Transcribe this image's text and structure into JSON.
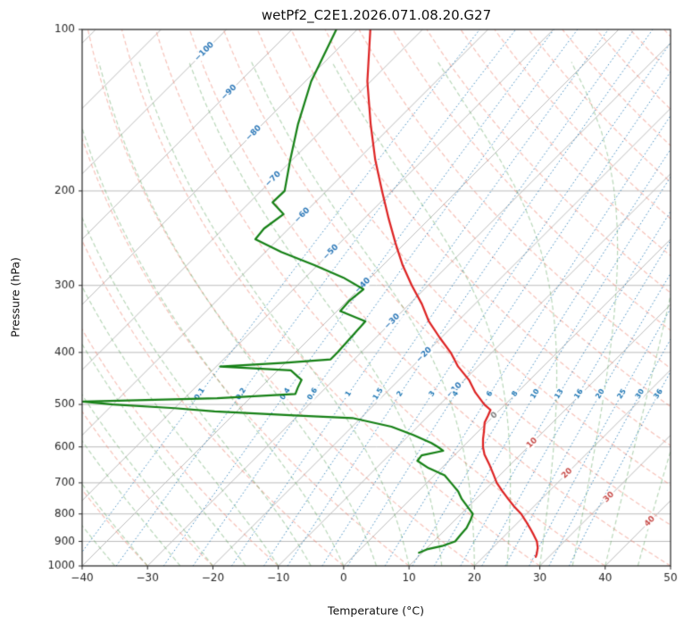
{
  "chart_data": {
    "type": "line",
    "variant": "skew-t-log-p",
    "title": "wetPf2_C2E1.2026.071.08.20.G27",
    "xlabel": "Temperature (°C)",
    "ylabel": "Pressure (hPa)",
    "xlim": [
      -40,
      50
    ],
    "pressure_lim": [
      100,
      1000
    ],
    "x_ticks": [
      -40,
      -30,
      -20,
      -10,
      0,
      10,
      20,
      30,
      40,
      50
    ],
    "y_ticks": [
      100,
      200,
      300,
      400,
      500,
      600,
      700,
      800,
      900,
      1000
    ],
    "skew_deg": 45,
    "grid": true,
    "isotherms": {
      "start": -120,
      "end": 50,
      "step": 10,
      "color": "#bbbbbb",
      "labels": [
        {
          "t": -100,
          "p": 110
        },
        {
          "t": -90,
          "p": 131
        },
        {
          "t": -80,
          "p": 156
        },
        {
          "t": -70,
          "p": 190
        },
        {
          "t": -60,
          "p": 222
        },
        {
          "t": -50,
          "p": 260
        },
        {
          "t": -40,
          "p": 300
        },
        {
          "t": -30,
          "p": 350
        },
        {
          "t": -20,
          "p": 404
        },
        {
          "t": -10,
          "p": 470
        },
        {
          "t": 0,
          "p": 524
        },
        {
          "t": 10,
          "p": 590
        },
        {
          "t": 20,
          "p": 672
        },
        {
          "t": 30,
          "p": 744
        },
        {
          "t": 40,
          "p": 826
        }
      ],
      "label_color_negative": "#2f7ab9",
      "label_color_zero": "#808080",
      "label_color_positive": "#c9504d"
    },
    "dry_adiabats": {
      "theta_c_start": -40,
      "theta_c_end": 190,
      "step": 10,
      "color": "rgba(235,120,100,0.45)"
    },
    "moist_adiabats": {
      "t_start_c": -40,
      "t_end_c": 45,
      "step": 5,
      "color": "rgba(70,150,70,0.38)"
    },
    "mixing_ratio": {
      "values_g_kg": [
        0.1,
        0.2,
        0.4,
        0.6,
        1,
        1.5,
        2,
        3,
        4,
        6,
        8,
        10,
        13,
        16,
        20,
        25,
        30,
        36
      ],
      "label_pressure_hpa": 478,
      "color": "rgba(31,119,180,0.85)",
      "label_color": "#1f77b4"
    },
    "series": [
      {
        "name": "temperature",
        "color": "#dd2222",
        "points": [
          [
            100,
            -78
          ],
          [
            125,
            -70.5
          ],
          [
            150,
            -63.5
          ],
          [
            175,
            -57.3
          ],
          [
            200,
            -51.5
          ],
          [
            225,
            -46.3
          ],
          [
            250,
            -41.5
          ],
          [
            275,
            -37
          ],
          [
            300,
            -32.5
          ],
          [
            325,
            -28.1
          ],
          [
            350,
            -24.4
          ],
          [
            375,
            -20.3
          ],
          [
            400,
            -16.3
          ],
          [
            425,
            -13
          ],
          [
            450,
            -9.3
          ],
          [
            475,
            -6.4
          ],
          [
            500,
            -3.2
          ],
          [
            512,
            -1.4
          ],
          [
            525,
            -0.9
          ],
          [
            540,
            -0.4
          ],
          [
            560,
            0.8
          ],
          [
            580,
            1.9
          ],
          [
            600,
            3.1
          ],
          [
            620,
            4.5
          ],
          [
            650,
            7
          ],
          [
            675,
            8.9
          ],
          [
            700,
            10.7
          ],
          [
            725,
            12.8
          ],
          [
            750,
            14.9
          ],
          [
            775,
            17
          ],
          [
            800,
            19.2
          ],
          [
            825,
            21
          ],
          [
            850,
            22.7
          ],
          [
            875,
            24.3
          ],
          [
            900,
            25.8
          ],
          [
            925,
            26.9
          ],
          [
            950,
            27.7
          ],
          [
            962,
            28
          ]
        ]
      },
      {
        "name": "dewpoint",
        "color": "#158015",
        "points": [
          [
            100,
            -83.2
          ],
          [
            125,
            -79.1
          ],
          [
            150,
            -74.6
          ],
          [
            175,
            -70.3
          ],
          [
            200,
            -66.4
          ],
          [
            210,
            -66.5
          ],
          [
            221,
            -63
          ],
          [
            235,
            -63.8
          ],
          [
            246,
            -63.5
          ],
          [
            260,
            -57.5
          ],
          [
            275,
            -50.5
          ],
          [
            290,
            -44.2
          ],
          [
            305,
            -39.3
          ],
          [
            320,
            -39.7
          ],
          [
            335,
            -39.5
          ],
          [
            350,
            -34.1
          ],
          [
            370,
            -33.9
          ],
          [
            400,
            -33.6
          ],
          [
            412,
            -33.6
          ],
          [
            418,
            -40
          ],
          [
            425,
            -49.4
          ],
          [
            432,
            -38
          ],
          [
            450,
            -34.9
          ],
          [
            465,
            -34.3
          ],
          [
            478,
            -33.7
          ],
          [
            487,
            -45
          ],
          [
            494,
            -65
          ],
          [
            500,
            -60
          ],
          [
            508,
            -50
          ],
          [
            515,
            -43.4
          ],
          [
            524,
            -30.6
          ],
          [
            530,
            -21.3
          ],
          [
            550,
            -14
          ],
          [
            570,
            -9.4
          ],
          [
            590,
            -5.4
          ],
          [
            602,
            -3.5
          ],
          [
            610,
            -2.4
          ],
          [
            622,
            -5
          ],
          [
            637,
            -4.8
          ],
          [
            657,
            -2
          ],
          [
            678,
            1.6
          ],
          [
            700,
            3.7
          ],
          [
            726,
            6.1
          ],
          [
            750,
            7.8
          ],
          [
            777,
            10
          ],
          [
            800,
            11.8
          ],
          [
            822,
            12.4
          ],
          [
            850,
            13
          ],
          [
            872,
            13.1
          ],
          [
            900,
            13.3
          ],
          [
            918,
            12
          ],
          [
            930,
            10.3
          ],
          [
            945,
            9.5
          ]
        ]
      }
    ],
    "axis_color": "#262626",
    "gridline_color": "#bbbbbb"
  }
}
